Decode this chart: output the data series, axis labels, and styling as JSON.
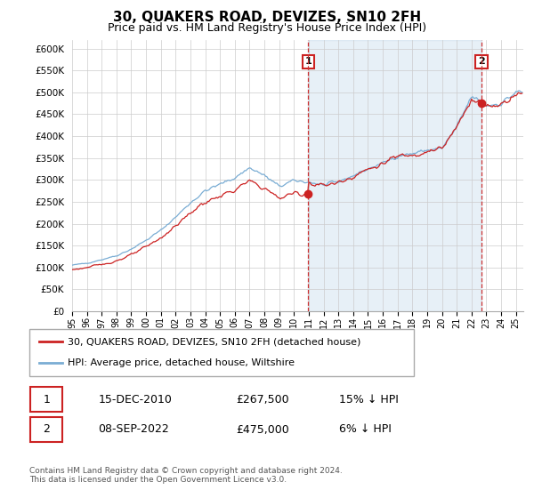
{
  "title": "30, QUAKERS ROAD, DEVIZES, SN10 2FH",
  "subtitle": "Price paid vs. HM Land Registry's House Price Index (HPI)",
  "hpi_label": "HPI: Average price, detached house, Wiltshire",
  "property_label": "30, QUAKERS ROAD, DEVIZES, SN10 2FH (detached house)",
  "footnote": "Contains HM Land Registry data © Crown copyright and database right 2024.\nThis data is licensed under the Open Government Licence v3.0.",
  "annotation1_date": "15-DEC-2010",
  "annotation1_price": "£267,500",
  "annotation1_hpi": "15% ↓ HPI",
  "annotation2_date": "08-SEP-2022",
  "annotation2_price": "£475,000",
  "annotation2_hpi": "6% ↓ HPI",
  "sale1_x": 2010.96,
  "sale1_y": 267500,
  "sale2_x": 2022.67,
  "sale2_y": 475000,
  "hpi_color": "#7aadd4",
  "hpi_fill_color": "#ddeeff",
  "property_color": "#cc2222",
  "vline_color": "#cc3333",
  "annotation_box_color": "#cc2222",
  "background_color": "#ffffff",
  "grid_color": "#cccccc",
  "ylim": [
    0,
    620000
  ],
  "xlim_start": 1995.0,
  "xlim_end": 2025.5
}
